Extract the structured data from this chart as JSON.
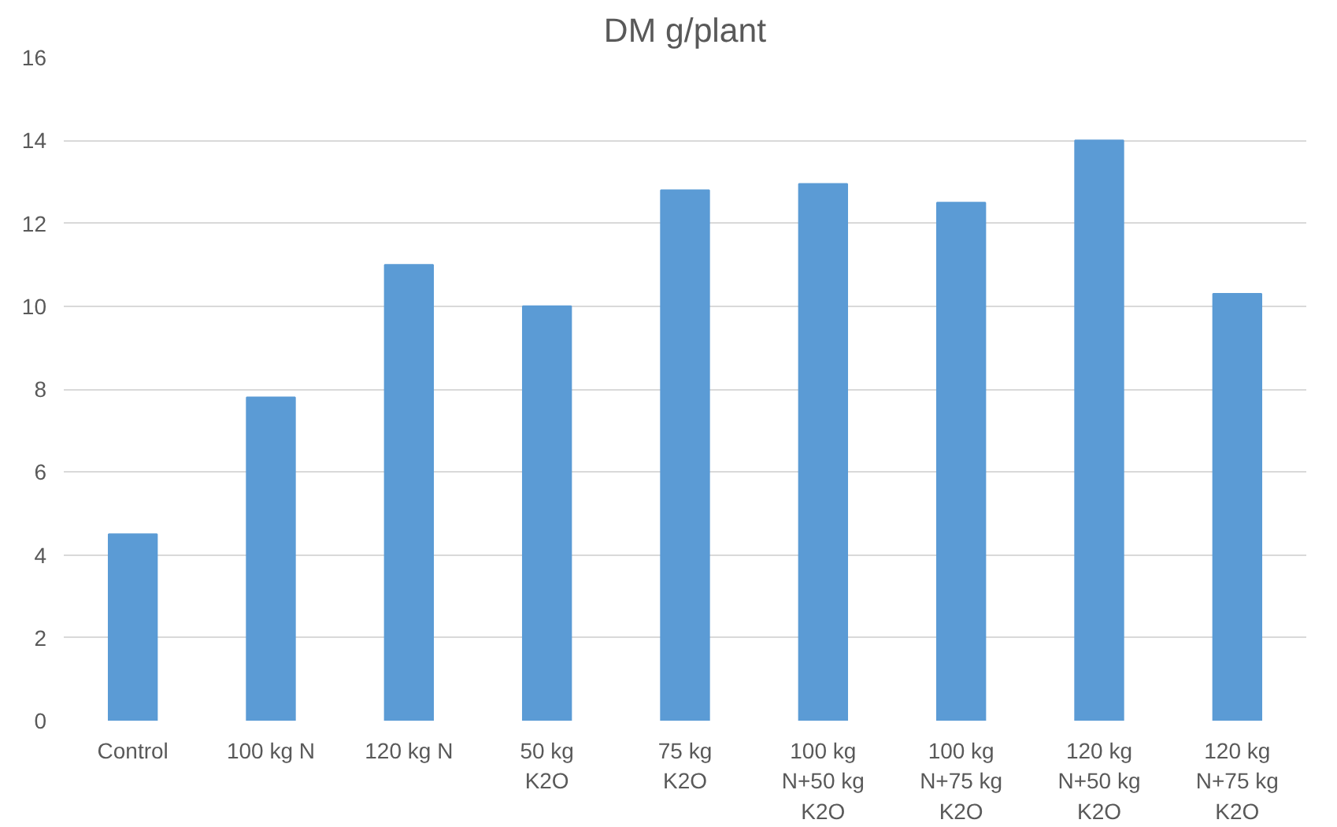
{
  "chart_data": {
    "type": "bar",
    "title": "DM g/plant",
    "categories": [
      "Control",
      "100 kg N",
      "120 kg N",
      "50 kg\nK2O",
      "75 kg\nK2O",
      "100 kg\nN+50 kg\nK2O",
      "100 kg\nN+75 kg\nK2O",
      "120 kg\nN+50 kg\nK2O",
      "120 kg\nN+75 kg\nK2O"
    ],
    "values": [
      4.5,
      7.8,
      11,
      10,
      12.8,
      12.95,
      12.5,
      14,
      10.3
    ],
    "color": "#5b9bd5",
    "ylim": [
      0,
      16
    ],
    "yticks": [
      0,
      2,
      4,
      6,
      8,
      10,
      12,
      14,
      16
    ],
    "grid": "y"
  }
}
